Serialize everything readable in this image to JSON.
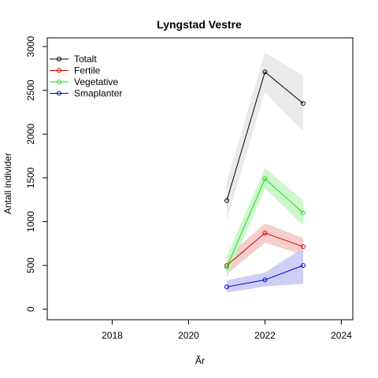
{
  "chart_data": {
    "type": "line",
    "title": "Lyngstad Vestre",
    "xlabel": "Ãr",
    "ylabel": "Antall individer",
    "xlim": [
      2016.3,
      2024.3
    ],
    "ylim": [
      -120,
      3100
    ],
    "xticks": [
      2018,
      2020,
      2022,
      2024
    ],
    "yticks": [
      0,
      500,
      1000,
      1500,
      2000,
      2500,
      3000
    ],
    "x": [
      2021,
      2022,
      2023
    ],
    "series": [
      {
        "name": "Totalt",
        "color": "#000000",
        "band_color": "#e6e6e6",
        "values": [
          1240,
          2710,
          2350
        ],
        "lower": [
          1020,
          2480,
          2030
        ],
        "upper": [
          1460,
          2930,
          2670
        ]
      },
      {
        "name": "Fertile",
        "color": "#dd0000",
        "band_color": "#f5c6c6",
        "values": [
          500,
          870,
          715
        ],
        "lower": [
          400,
          760,
          615
        ],
        "upper": [
          600,
          980,
          815
        ]
      },
      {
        "name": "Vegetative",
        "color": "#22dd22",
        "band_color": "#c3f5c3",
        "values": [
          480,
          1490,
          1100
        ],
        "lower": [
          360,
          1380,
          960
        ],
        "upper": [
          600,
          1610,
          1240
        ]
      },
      {
        "name": "Smaplanter",
        "color": "#0000cc",
        "band_color": "#c6c6f7",
        "values": [
          255,
          335,
          500
        ],
        "lower": [
          190,
          260,
          290
        ],
        "upper": [
          330,
          420,
          700
        ]
      }
    ],
    "legend_position": "top-left",
    "grid": false
  }
}
